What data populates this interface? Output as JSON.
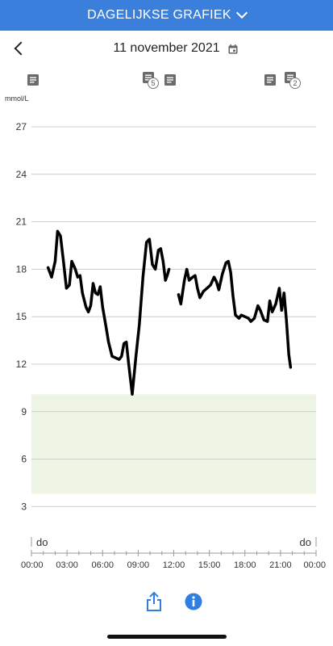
{
  "header": {
    "title": "DAGELIJKSE GRAFIEK"
  },
  "datebar": {
    "date": "11 november 2021"
  },
  "notes": [
    {
      "icon": "note-icon",
      "badge": ""
    },
    {
      "icon": "note-icon",
      "badge": "5"
    },
    {
      "icon": "note-icon",
      "badge": ""
    },
    {
      "icon": "note-icon",
      "badge": ""
    },
    {
      "icon": "note-icon",
      "badge": "2"
    }
  ],
  "chart_data": {
    "type": "line",
    "ylabel": "mmol/L",
    "ylim": [
      0,
      28
    ],
    "yticks": [
      3,
      6,
      9,
      12,
      15,
      18,
      21,
      24,
      27
    ],
    "xlim": [
      0,
      24
    ],
    "xticks": [
      "00:00",
      "03:00",
      "06:00",
      "09:00",
      "12:00",
      "15:00",
      "18:00",
      "21:00",
      "00:00"
    ],
    "day_labels": [
      "do",
      "do"
    ],
    "target_range": [
      3.8,
      10.1
    ],
    "colors": {
      "line": "#000000",
      "target": "#eef5e4",
      "grid": "#cccccc"
    },
    "series": [
      {
        "segments": [
          [
            [
              1.4,
              18.1
            ],
            [
              1.7,
              17.5
            ],
            [
              2.0,
              18.5
            ],
            [
              2.2,
              20.4
            ],
            [
              2.45,
              20.1
            ],
            [
              2.7,
              18.5
            ],
            [
              2.95,
              16.8
            ],
            [
              3.2,
              17.0
            ],
            [
              3.4,
              18.5
            ],
            [
              3.7,
              18.0
            ],
            [
              3.9,
              17.5
            ],
            [
              4.1,
              17.6
            ],
            [
              4.3,
              16.5
            ],
            [
              4.6,
              15.6
            ],
            [
              4.8,
              15.3
            ],
            [
              5.0,
              15.7
            ],
            [
              5.2,
              17.1
            ],
            [
              5.4,
              16.5
            ],
            [
              5.6,
              16.4
            ],
            [
              5.8,
              16.9
            ],
            [
              6.0,
              15.6
            ],
            [
              6.3,
              14.3
            ],
            [
              6.5,
              13.4
            ],
            [
              6.8,
              12.5
            ],
            [
              7.1,
              12.4
            ],
            [
              7.4,
              12.3
            ],
            [
              7.6,
              12.5
            ],
            [
              7.8,
              13.3
            ],
            [
              8.0,
              13.4
            ],
            [
              8.2,
              12.0
            ],
            [
              8.5,
              10.1
            ],
            [
              8.8,
              12.4
            ],
            [
              9.1,
              14.5
            ],
            [
              9.4,
              17.5
            ],
            [
              9.7,
              19.7
            ],
            [
              9.95,
              19.9
            ],
            [
              10.2,
              18.3
            ],
            [
              10.45,
              18.0
            ],
            [
              10.7,
              19.2
            ],
            [
              10.9,
              19.3
            ],
            [
              11.1,
              18.5
            ],
            [
              11.3,
              17.3
            ],
            [
              11.45,
              17.6
            ],
            [
              11.6,
              18.0
            ]
          ],
          [
            [
              12.4,
              16.4
            ],
            [
              12.6,
              15.8
            ],
            [
              12.9,
              17.3
            ],
            [
              13.1,
              18.0
            ],
            [
              13.3,
              17.3
            ],
            [
              13.6,
              17.5
            ],
            [
              13.8,
              17.6
            ],
            [
              14.0,
              16.8
            ],
            [
              14.2,
              16.2
            ],
            [
              14.5,
              16.6
            ],
            [
              14.8,
              16.8
            ],
            [
              15.1,
              17.0
            ],
            [
              15.4,
              17.5
            ],
            [
              15.6,
              17.2
            ],
            [
              15.8,
              16.7
            ],
            [
              16.1,
              17.7
            ],
            [
              16.4,
              18.4
            ],
            [
              16.6,
              18.5
            ],
            [
              16.8,
              17.8
            ],
            [
              17.0,
              16.3
            ],
            [
              17.2,
              15.1
            ],
            [
              17.5,
              14.9
            ],
            [
              17.7,
              15.1
            ],
            [
              18.0,
              15.0
            ],
            [
              18.3,
              14.9
            ],
            [
              18.5,
              14.7
            ],
            [
              18.8,
              14.9
            ],
            [
              19.1,
              15.7
            ],
            [
              19.3,
              15.4
            ],
            [
              19.6,
              14.8
            ],
            [
              19.9,
              14.7
            ],
            [
              20.1,
              16.0
            ],
            [
              20.3,
              15.3
            ],
            [
              20.6,
              15.8
            ],
            [
              20.9,
              16.8
            ],
            [
              21.1,
              15.4
            ],
            [
              21.3,
              16.5
            ],
            [
              21.5,
              14.8
            ],
            [
              21.7,
              12.6
            ],
            [
              21.85,
              11.8
            ]
          ]
        ]
      }
    ]
  }
}
